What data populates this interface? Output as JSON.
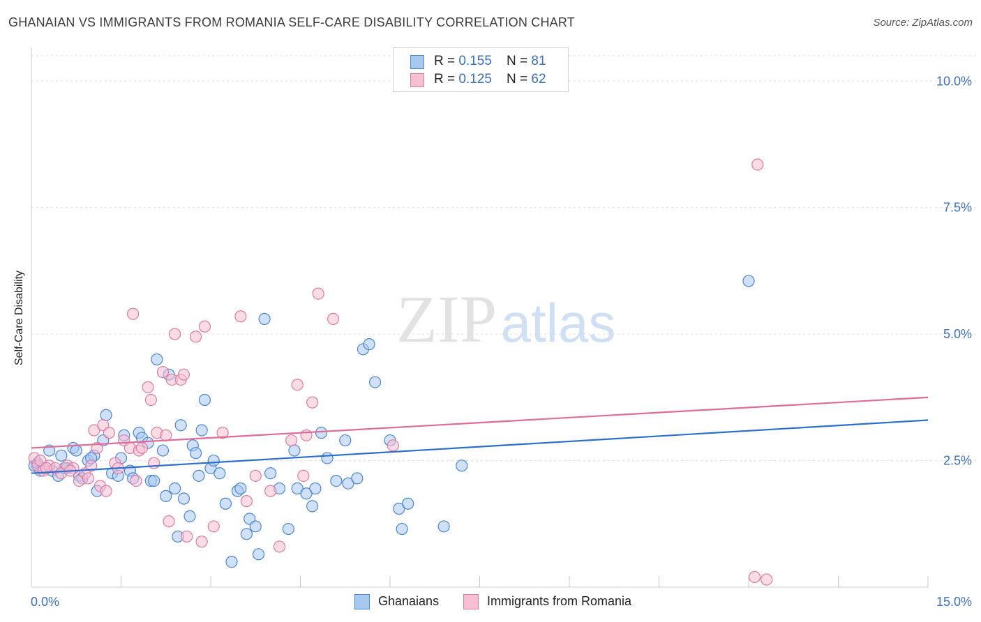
{
  "title": "GHANAIAN VS IMMIGRANTS FROM ROMANIA SELF-CARE DISABILITY CORRELATION CHART",
  "source": "Source: ZipAtlas.com",
  "watermark": {
    "zip": "ZIP",
    "atlas": "atlas"
  },
  "colors": {
    "blue_fill": "#a9c8f0",
    "blue_stroke": "#4a86d4",
    "blue_line": "#2a6fd0",
    "pink_fill": "#f6c0d3",
    "pink_stroke": "#e07aa0",
    "pink_line": "#e06b96",
    "tick_text": "#3a6fc4",
    "grid": "#dddddd"
  },
  "legend": {
    "rows": [
      {
        "r_label": "R = ",
        "r_value": "0.155",
        "n_label": "N = ",
        "n_value": "81"
      },
      {
        "r_label": "R = ",
        "r_value": "0.125",
        "n_label": "N = ",
        "n_value": "62"
      }
    ]
  },
  "chart_data": {
    "type": "scatter",
    "title": "GHANAIAN VS IMMIGRANTS FROM ROMANIA SELF-CARE DISABILITY CORRELATION CHART",
    "xlabel": "",
    "ylabel": "Self-Care Disability",
    "xlim": [
      0,
      15
    ],
    "ylim": [
      0,
      10.5
    ],
    "x_ticks": [
      {
        "value": 0,
        "label": "0.0%"
      },
      {
        "value": 15,
        "label": "15.0%"
      }
    ],
    "y_ticks": [
      {
        "value": 2.5,
        "label": "2.5%"
      },
      {
        "value": 5.0,
        "label": "5.0%"
      },
      {
        "value": 7.5,
        "label": "7.5%"
      },
      {
        "value": 10.0,
        "label": "10.0%"
      }
    ],
    "grid": true,
    "legend_position": "top-center",
    "series": [
      {
        "name": "Ghanaians",
        "color": "#a9c8f0",
        "trend": {
          "x": [
            0,
            15
          ],
          "y": [
            2.25,
            3.3
          ]
        },
        "points": [
          [
            0.05,
            2.4
          ],
          [
            0.1,
            2.45
          ],
          [
            0.15,
            2.3
          ],
          [
            0.2,
            2.35
          ],
          [
            0.3,
            2.7
          ],
          [
            0.35,
            2.3
          ],
          [
            0.45,
            2.2
          ],
          [
            0.5,
            2.6
          ],
          [
            0.6,
            2.35
          ],
          [
            0.7,
            2.75
          ],
          [
            0.75,
            2.7
          ],
          [
            0.8,
            2.2
          ],
          [
            0.85,
            2.15
          ],
          [
            0.95,
            2.5
          ],
          [
            1.05,
            2.6
          ],
          [
            1.1,
            1.9
          ],
          [
            1.2,
            2.9
          ],
          [
            1.25,
            3.4
          ],
          [
            1.35,
            2.25
          ],
          [
            1.45,
            2.2
          ],
          [
            1.5,
            2.55
          ],
          [
            1.55,
            3.0
          ],
          [
            1.65,
            2.3
          ],
          [
            1.7,
            2.15
          ],
          [
            1.8,
            3.05
          ],
          [
            1.85,
            2.95
          ],
          [
            1.95,
            2.85
          ],
          [
            2.0,
            2.1
          ],
          [
            2.05,
            2.1
          ],
          [
            2.1,
            4.5
          ],
          [
            2.2,
            2.7
          ],
          [
            2.25,
            1.8
          ],
          [
            2.3,
            4.2
          ],
          [
            2.4,
            1.95
          ],
          [
            2.45,
            1.0
          ],
          [
            2.5,
            3.2
          ],
          [
            2.55,
            1.75
          ],
          [
            2.65,
            1.4
          ],
          [
            2.7,
            2.8
          ],
          [
            2.75,
            2.65
          ],
          [
            2.8,
            2.2
          ],
          [
            2.85,
            3.1
          ],
          [
            2.9,
            3.7
          ],
          [
            3.0,
            2.35
          ],
          [
            3.05,
            2.5
          ],
          [
            3.15,
            2.25
          ],
          [
            3.25,
            1.65
          ],
          [
            3.35,
            0.5
          ],
          [
            3.45,
            1.9
          ],
          [
            3.5,
            1.95
          ],
          [
            3.6,
            1.05
          ],
          [
            3.65,
            1.35
          ],
          [
            3.75,
            1.2
          ],
          [
            3.8,
            0.65
          ],
          [
            3.9,
            5.3
          ],
          [
            4.0,
            2.25
          ],
          [
            4.15,
            1.95
          ],
          [
            4.3,
            1.15
          ],
          [
            4.4,
            2.7
          ],
          [
            4.45,
            1.95
          ],
          [
            4.6,
            1.85
          ],
          [
            4.7,
            1.6
          ],
          [
            4.75,
            1.95
          ],
          [
            4.85,
            3.05
          ],
          [
            4.95,
            2.55
          ],
          [
            5.1,
            2.1
          ],
          [
            5.25,
            2.9
          ],
          [
            5.3,
            2.05
          ],
          [
            5.45,
            2.15
          ],
          [
            5.55,
            4.7
          ],
          [
            5.65,
            4.8
          ],
          [
            5.75,
            4.05
          ],
          [
            6.0,
            2.9
          ],
          [
            6.15,
            1.55
          ],
          [
            6.2,
            1.15
          ],
          [
            6.3,
            1.65
          ],
          [
            6.9,
            1.2
          ],
          [
            7.2,
            2.4
          ],
          [
            12.0,
            6.05
          ],
          [
            0.55,
            2.35
          ],
          [
            1.0,
            2.55
          ]
        ]
      },
      {
        "name": "Immigrants from Romania",
        "color": "#f6c0d3",
        "trend": {
          "x": [
            0,
            15
          ],
          "y": [
            2.75,
            3.75
          ]
        },
        "points": [
          [
            0.05,
            2.55
          ],
          [
            0.1,
            2.4
          ],
          [
            0.15,
            2.5
          ],
          [
            0.2,
            2.3
          ],
          [
            0.3,
            2.4
          ],
          [
            0.4,
            2.35
          ],
          [
            0.5,
            2.25
          ],
          [
            0.6,
            2.4
          ],
          [
            0.7,
            2.35
          ],
          [
            0.8,
            2.1
          ],
          [
            0.9,
            2.25
          ],
          [
            1.0,
            2.4
          ],
          [
            1.05,
            3.1
          ],
          [
            1.1,
            2.75
          ],
          [
            1.15,
            2.0
          ],
          [
            1.2,
            3.2
          ],
          [
            1.25,
            1.9
          ],
          [
            1.3,
            3.05
          ],
          [
            1.4,
            2.45
          ],
          [
            1.45,
            2.35
          ],
          [
            1.55,
            2.9
          ],
          [
            1.65,
            2.75
          ],
          [
            1.7,
            5.4
          ],
          [
            1.75,
            2.1
          ],
          [
            1.8,
            2.7
          ],
          [
            1.85,
            2.75
          ],
          [
            1.95,
            3.95
          ],
          [
            2.0,
            3.7
          ],
          [
            2.05,
            2.45
          ],
          [
            2.1,
            3.05
          ],
          [
            2.2,
            4.25
          ],
          [
            2.25,
            3.0
          ],
          [
            2.3,
            1.3
          ],
          [
            2.35,
            4.1
          ],
          [
            2.4,
            5.0
          ],
          [
            2.5,
            4.1
          ],
          [
            2.55,
            4.2
          ],
          [
            2.6,
            1.0
          ],
          [
            2.75,
            4.95
          ],
          [
            2.85,
            0.9
          ],
          [
            2.9,
            5.15
          ],
          [
            3.05,
            1.2
          ],
          [
            3.2,
            3.05
          ],
          [
            3.5,
            5.35
          ],
          [
            3.6,
            1.7
          ],
          [
            3.75,
            2.2
          ],
          [
            4.0,
            1.9
          ],
          [
            4.15,
            0.8
          ],
          [
            4.35,
            2.9
          ],
          [
            4.45,
            4.0
          ],
          [
            4.55,
            2.2
          ],
          [
            4.6,
            3.0
          ],
          [
            4.7,
            3.65
          ],
          [
            4.8,
            5.8
          ],
          [
            5.05,
            5.3
          ],
          [
            6.05,
            2.8
          ],
          [
            12.15,
            8.35
          ],
          [
            12.1,
            0.2
          ],
          [
            12.3,
            0.15
          ],
          [
            0.25,
            2.35
          ],
          [
            0.65,
            2.3
          ],
          [
            0.95,
            2.15
          ]
        ]
      }
    ]
  },
  "bottom_legend": [
    "Ghanaians",
    "Immigrants from Romania"
  ]
}
